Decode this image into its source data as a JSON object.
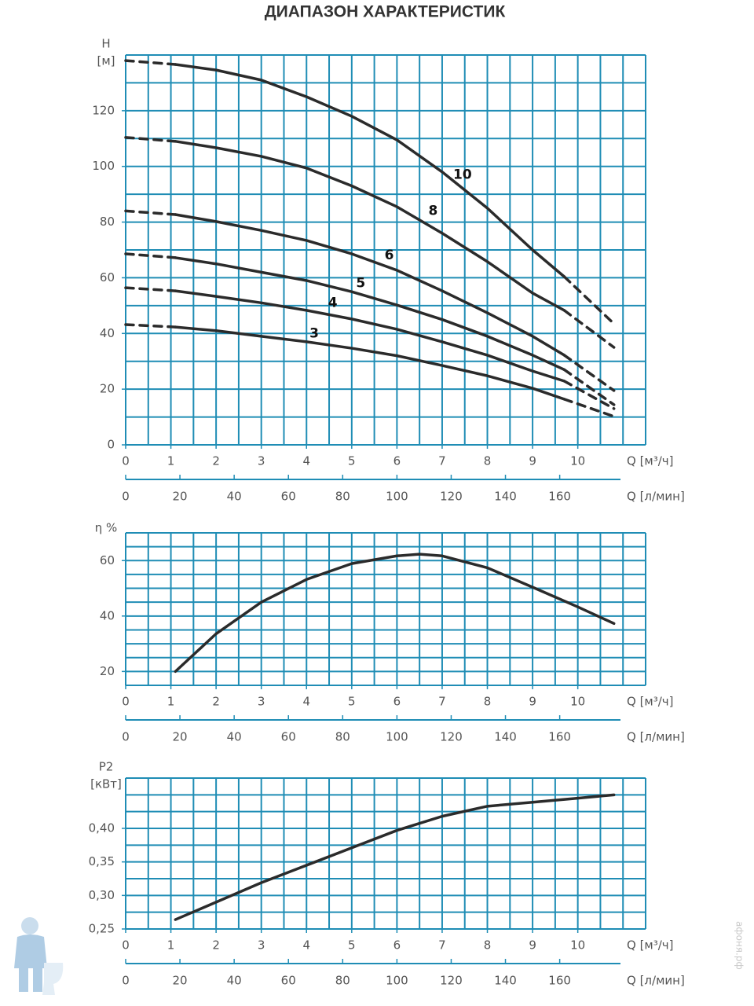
{
  "title": "ДИАПАЗОН ХАРАКТЕРИСТИК",
  "watermark": "афоня.рф",
  "chart_data": [
    {
      "type": "line",
      "y_label": "H",
      "y_unit": "[м]",
      "x_label": "Q [м³/ч]",
      "x2_label": "Q [л/мин]",
      "xlim": [
        0,
        11.5
      ],
      "xticks": [
        0,
        1,
        2,
        3,
        4,
        5,
        6,
        7,
        8,
        9,
        10
      ],
      "x2lim": [
        0,
        191.67
      ],
      "x2ticks": [
        0,
        20,
        40,
        60,
        80,
        100,
        120,
        140,
        160
      ],
      "ylim": [
        0,
        140
      ],
      "yticks": [
        0,
        20,
        40,
        60,
        80,
        100,
        120
      ],
      "grid": true,
      "grid_color": "#1f8db5",
      "xgrid": [
        0,
        0.5,
        1,
        1.5,
        2,
        2.5,
        3,
        3.5,
        4,
        4.5,
        5,
        5.5,
        6,
        6.5,
        7,
        7.5,
        8,
        8.5,
        9,
        9.5,
        10,
        10.5,
        11,
        11.5
      ],
      "ygrid": [
        0,
        10,
        20,
        30,
        40,
        50,
        60,
        70,
        80,
        90,
        100,
        110,
        120,
        130,
        140
      ],
      "dashed_ends": true,
      "series": [
        {
          "name": "10",
          "color": "#2b2b2b",
          "label_x": 7.45,
          "label_y": 97,
          "x": [
            0,
            1.1,
            2,
            3,
            4,
            5,
            6,
            7,
            8,
            9,
            9.7,
            10.8
          ],
          "values": [
            138,
            136.6,
            134.6,
            131,
            125,
            118,
            109.5,
            98,
            85,
            70,
            60.4,
            43.5
          ]
        },
        {
          "name": "8",
          "color": "#2b2b2b",
          "label_x": 6.8,
          "label_y": 84,
          "x": [
            0,
            1.1,
            2,
            3,
            4,
            5,
            6,
            7,
            8,
            9,
            9.7,
            10.8
          ],
          "values": [
            110.4,
            109,
            106.7,
            103.6,
            99.4,
            93,
            85.5,
            76,
            65.8,
            54.5,
            48.3,
            35
          ]
        },
        {
          "name": "6",
          "color": "#2b2b2b",
          "label_x": 5.83,
          "label_y": 68,
          "x": [
            0,
            1.1,
            2,
            3,
            4,
            5,
            6,
            7,
            8,
            9,
            9.7,
            10.8
          ],
          "values": [
            84,
            82.7,
            80.2,
            77,
            73.4,
            68.6,
            62.7,
            55.3,
            47.4,
            39,
            32.2,
            19.5
          ]
        },
        {
          "name": "5",
          "color": "#2b2b2b",
          "label_x": 5.2,
          "label_y": 58,
          "x": [
            0,
            1.1,
            2,
            3,
            4,
            5,
            6,
            7,
            8,
            9,
            9.7,
            10.8
          ],
          "values": [
            68.6,
            67.2,
            65,
            62,
            59,
            55,
            50.2,
            45,
            39,
            32.2,
            27,
            14.4
          ]
        },
        {
          "name": "4",
          "color": "#2b2b2b",
          "label_x": 4.58,
          "label_y": 51,
          "x": [
            0,
            1.1,
            2,
            3,
            4,
            5,
            6,
            7,
            8,
            9,
            9.7,
            10.8
          ],
          "values": [
            56.4,
            55.3,
            53.3,
            51,
            48.3,
            45.2,
            41.5,
            37,
            32.2,
            26.5,
            22.9,
            13
          ]
        },
        {
          "name": "3",
          "color": "#2b2b2b",
          "label_x": 4.17,
          "label_y": 40,
          "x": [
            0,
            1.1,
            2,
            3,
            4,
            5,
            6,
            7,
            8,
            9,
            9.7,
            10.8
          ],
          "values": [
            43.2,
            42.3,
            41,
            39,
            37,
            34.7,
            32,
            28.5,
            24.8,
            20.3,
            16.4,
            10.2
          ]
        }
      ]
    },
    {
      "type": "line",
      "y_label": "η %",
      "x_label": "Q [м³/ч]",
      "x2_label": "Q [л/мин]",
      "xlim": [
        0,
        11.5
      ],
      "xticks": [
        0,
        1,
        2,
        3,
        4,
        5,
        6,
        7,
        8,
        9,
        10
      ],
      "x2lim": [
        0,
        191.67
      ],
      "x2ticks": [
        0,
        20,
        40,
        60,
        80,
        100,
        120,
        140,
        160
      ],
      "ylim": [
        15,
        70
      ],
      "yticks": [
        20,
        40,
        60
      ],
      "grid": true,
      "grid_color": "#1f8db5",
      "xgrid": [
        0,
        0.5,
        1,
        1.5,
        2,
        2.5,
        3,
        3.5,
        4,
        4.5,
        5,
        5.5,
        6,
        6.5,
        7,
        7.5,
        8,
        8.5,
        9,
        9.5,
        10,
        10.5,
        11,
        11.5
      ],
      "ygrid": [
        15,
        20,
        25,
        30,
        35,
        40,
        45,
        50,
        55,
        60,
        65,
        70
      ],
      "dashed_ends": false,
      "series": [
        {
          "color": "#2b2b2b",
          "x": [
            1.1,
            2,
            3,
            4,
            5,
            6,
            6.5,
            7,
            8,
            9,
            10,
            10.8
          ],
          "values": [
            20,
            33.6,
            45,
            53.2,
            58.9,
            61.7,
            62.3,
            61.7,
            57.4,
            50.4,
            43.3,
            37.3
          ]
        }
      ]
    },
    {
      "type": "line",
      "y_label": "P2",
      "y_unit": "[кВт]",
      "x_label": "Q [м³/ч]",
      "x2_label": "Q [л/мин]",
      "xlim": [
        0,
        11.5
      ],
      "xticks": [
        0,
        1,
        2,
        3,
        4,
        5,
        6,
        7,
        8,
        9,
        10
      ],
      "x2lim": [
        0,
        191.67
      ],
      "x2ticks": [
        0,
        20,
        40,
        60,
        80,
        100,
        120,
        140,
        160
      ],
      "ylim": [
        0.25,
        0.475
      ],
      "yticks": [
        {
          "value": 0.25,
          "label": "0,25"
        },
        {
          "value": 0.3,
          "label": "0,30"
        },
        {
          "value": 0.35,
          "label": "0,35"
        },
        {
          "value": 0.4,
          "label": "0,40"
        }
      ],
      "grid": true,
      "grid_color": "#1f8db5",
      "xgrid": [
        0,
        0.5,
        1,
        1.5,
        2,
        2.5,
        3,
        3.5,
        4,
        4.5,
        5,
        5.5,
        6,
        6.5,
        7,
        7.5,
        8,
        8.5,
        9,
        9.5,
        10,
        10.5,
        11,
        11.5
      ],
      "ygrid": [
        0.25,
        0.275,
        0.3,
        0.325,
        0.35,
        0.375,
        0.4,
        0.425,
        0.45,
        0.475
      ],
      "dashed_ends": false,
      "series": [
        {
          "color": "#2b2b2b",
          "x": [
            1.1,
            2,
            3,
            4,
            5,
            6,
            7,
            8,
            9,
            10,
            10.8
          ],
          "values": [
            0.264,
            0.29,
            0.319,
            0.345,
            0.371,
            0.397,
            0.418,
            0.433,
            0.439,
            0.445,
            0.45
          ]
        }
      ]
    }
  ]
}
